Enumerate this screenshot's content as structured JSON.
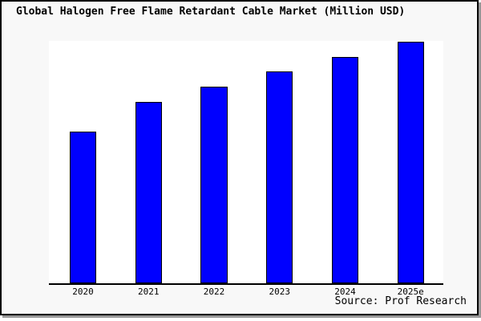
{
  "figure": {
    "title": "Global Halogen Free Flame Retardant Cable Market (Million USD)",
    "source_note": "Source: Prof Research"
  },
  "colors": {
    "bar_fill": "#0000ff",
    "bar_edge": "#000000",
    "plot_bg": "#ffffff",
    "figure_bg": "#f8f8f8",
    "frame_border": "#000000",
    "shadow": "#999999",
    "text": "#000000"
  },
  "chart_data": {
    "type": "bar",
    "title": "Global Halogen Free Flame Retardant Cable Market (Million USD)",
    "categories": [
      "2020",
      "2021",
      "2022",
      "2023",
      "2024",
      "2025e"
    ],
    "values": [
      62.8,
      75.1,
      81.4,
      87.7,
      93.7,
      100
    ],
    "values_note": "relative scale (tallest bar = 100); y-axis has no tick labels or gridlines in source image",
    "xlabel": "",
    "ylabel": "",
    "ylim": [
      0,
      100.3
    ],
    "grid": false,
    "legend": null,
    "source_annotation": "Source: Prof Research"
  }
}
